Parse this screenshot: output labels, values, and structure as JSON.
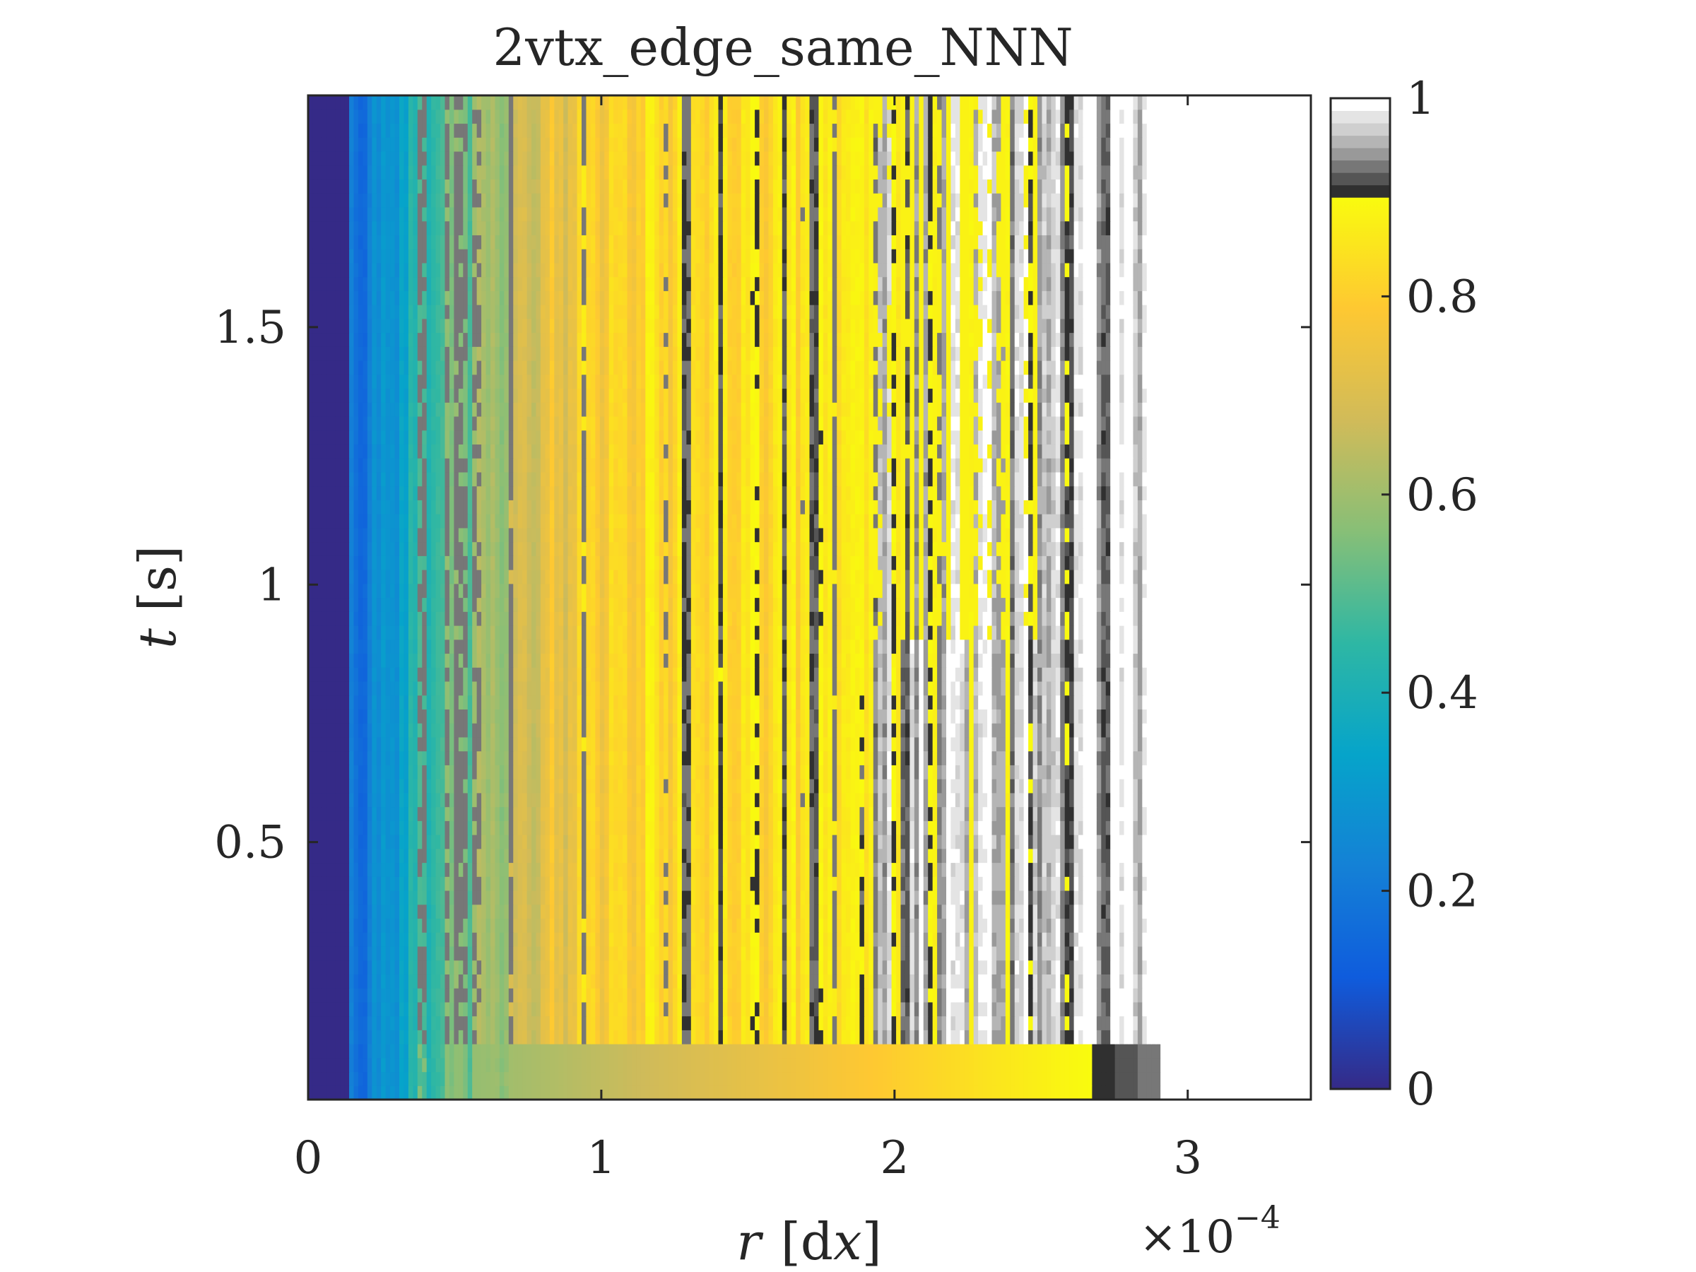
{
  "chart_data": {
    "type": "heatmap",
    "title": "2vtx_edge_same_NNN",
    "xlabel": {
      "var": "r",
      "unit_open": "[d",
      "unit_var": "x",
      "unit_close": "]"
    },
    "ylabel": {
      "var": "t",
      "unit": "[s]"
    },
    "x_multiplier": {
      "times": "×10",
      "exponent": "−4"
    },
    "xlim": [
      0,
      3.42
    ],
    "ylim": [
      0,
      1.95
    ],
    "xticks": [
      0,
      1,
      2,
      3
    ],
    "xtick_labels": [
      "0",
      "1",
      "2",
      "3"
    ],
    "yticks": [
      0.5,
      1,
      1.5
    ],
    "ytick_labels": [
      "0.5",
      "1",
      "1.5"
    ],
    "colorbar": {
      "range": [
        0,
        1
      ],
      "ticks": [
        0,
        0.2,
        0.4,
        0.6,
        0.8,
        1
      ],
      "tick_labels": [
        "0",
        "0.2",
        "0.4",
        "0.6",
        "0.8",
        "1"
      ],
      "colormap": "parula (0–0.9) + gray (0.9–1)"
    },
    "field_description": "values near 0 at small r, rising to ~0.8–0.9 (yellow/orange) for r ≈ 0.4–1.9 with vertical streaks, gray 0.9–1 for r ≈ 1.9–2.9, white ≈1 beyond r ≈ 2.9"
  },
  "colors": {
    "axis": "#262626",
    "parula": [
      "#352a87",
      "#0f5cdd",
      "#1481d6",
      "#06a4ca",
      "#2eb7a4",
      "#87bf77",
      "#d1bb59",
      "#fec832",
      "#f9fb0e"
    ],
    "gray_levels": [
      "#303030",
      "#555555",
      "#777777",
      "#999999",
      "#b5b5b5",
      "#cfcfcf",
      "#e4e4e4",
      "#ffffff"
    ]
  }
}
